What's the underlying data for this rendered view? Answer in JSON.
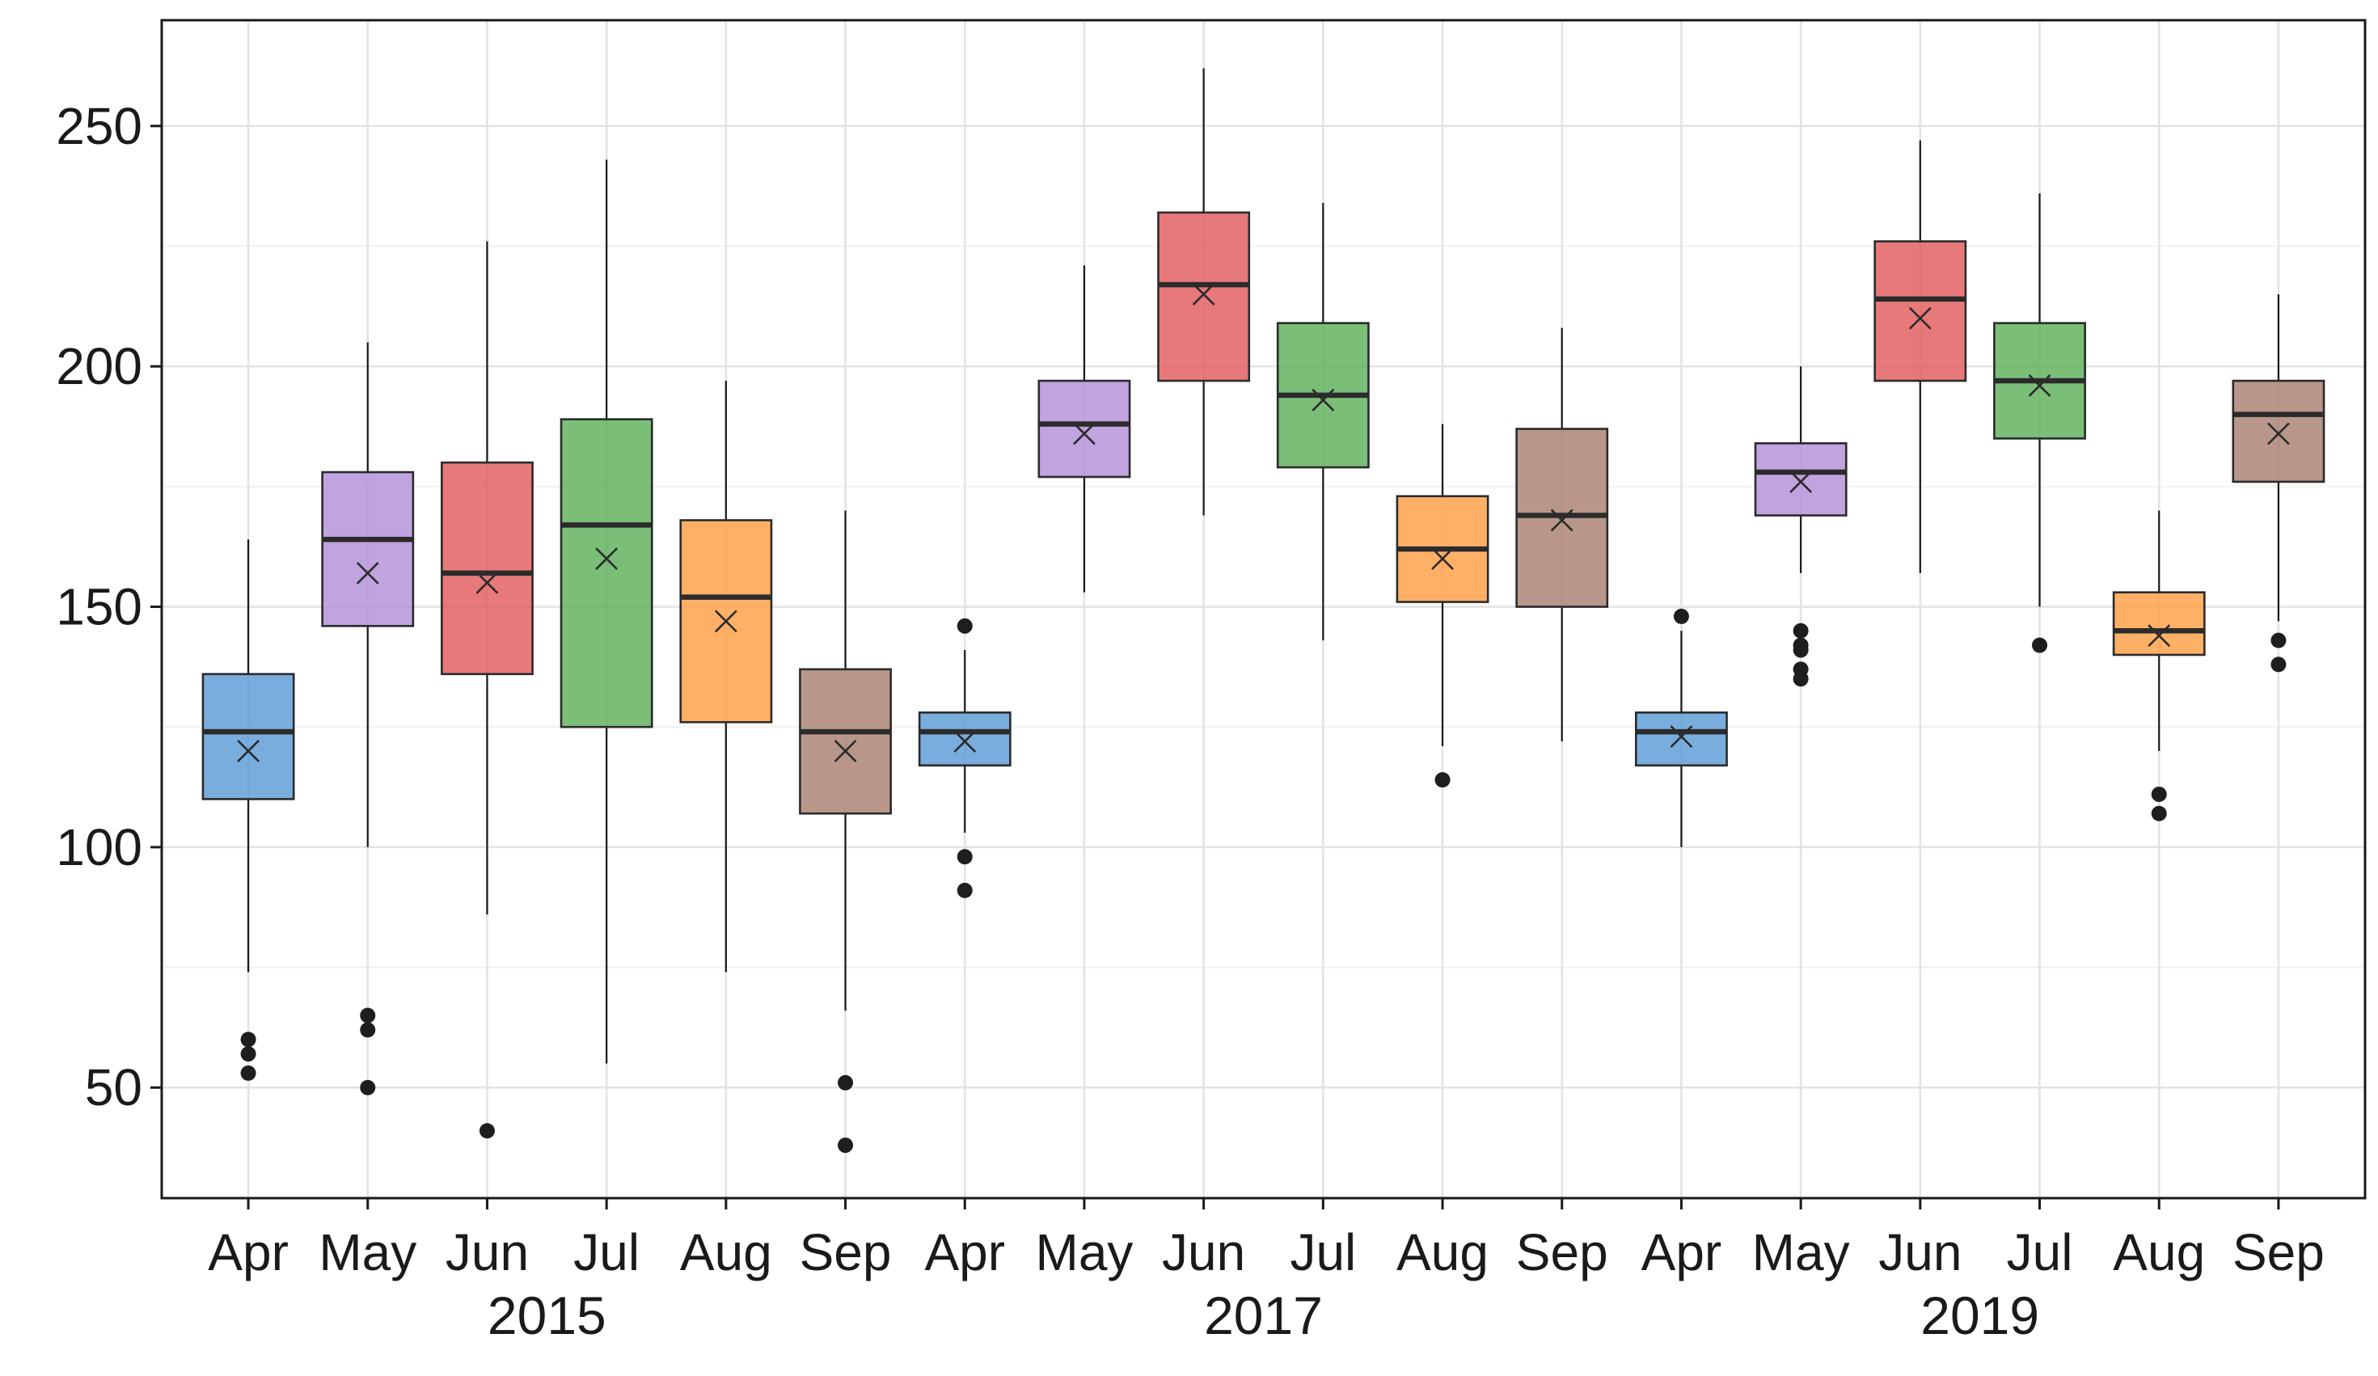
{
  "chart_data": {
    "type": "boxplot",
    "title": "",
    "xlabel": "",
    "ylabel": "",
    "ylim": [
      27,
      272
    ],
    "yticks": [
      50,
      100,
      150,
      200,
      250
    ],
    "grid": true,
    "legend": "none",
    "month_colors": {
      "Apr": "#5b9bd5",
      "May": "#b38fd9",
      "Jun": "#e25b5e",
      "Jul": "#5db05a",
      "Aug": "#ff9f45",
      "Sep": "#a88070"
    },
    "groups": [
      {
        "year": "2015",
        "boxes": [
          {
            "month": "Apr",
            "whisker_low": 74,
            "q1": 110,
            "median": 124,
            "q3": 136,
            "whisker_high": 164,
            "mean": 120,
            "outliers": [
              60,
              57,
              53
            ]
          },
          {
            "month": "May",
            "whisker_low": 100,
            "q1": 146,
            "median": 164,
            "q3": 178,
            "whisker_high": 205,
            "mean": 157,
            "outliers": [
              65,
              62,
              50
            ]
          },
          {
            "month": "Jun",
            "whisker_low": 86,
            "q1": 136,
            "median": 157,
            "q3": 180,
            "whisker_high": 226,
            "mean": 155,
            "outliers": [
              41
            ]
          },
          {
            "month": "Jul",
            "whisker_low": 55,
            "q1": 125,
            "median": 167,
            "q3": 189,
            "whisker_high": 243,
            "mean": 160,
            "outliers": []
          },
          {
            "month": "Aug",
            "whisker_low": 74,
            "q1": 126,
            "median": 152,
            "q3": 168,
            "whisker_high": 197,
            "mean": 147,
            "outliers": []
          },
          {
            "month": "Sep",
            "whisker_low": 66,
            "q1": 107,
            "median": 124,
            "q3": 137,
            "whisker_high": 170,
            "mean": 120,
            "outliers": [
              51,
              38
            ]
          }
        ]
      },
      {
        "year": "2017",
        "boxes": [
          {
            "month": "Apr",
            "whisker_low": 103,
            "q1": 117,
            "median": 124,
            "q3": 128,
            "whisker_high": 141,
            "mean": 122,
            "outliers": [
              146,
              98,
              91
            ]
          },
          {
            "month": "May",
            "whisker_low": 153,
            "q1": 177,
            "median": 188,
            "q3": 197,
            "whisker_high": 221,
            "mean": 186,
            "outliers": []
          },
          {
            "month": "Jun",
            "whisker_low": 169,
            "q1": 197,
            "median": 217,
            "q3": 232,
            "whisker_high": 262,
            "mean": 215,
            "outliers": []
          },
          {
            "month": "Jul",
            "whisker_low": 143,
            "q1": 179,
            "median": 194,
            "q3": 209,
            "whisker_high": 234,
            "mean": 193,
            "outliers": []
          },
          {
            "month": "Aug",
            "whisker_low": 121,
            "q1": 151,
            "median": 162,
            "q3": 173,
            "whisker_high": 188,
            "mean": 160,
            "outliers": [
              114
            ]
          },
          {
            "month": "Sep",
            "whisker_low": 122,
            "q1": 150,
            "median": 169,
            "q3": 187,
            "whisker_high": 208,
            "mean": 168,
            "outliers": []
          }
        ]
      },
      {
        "year": "2019",
        "boxes": [
          {
            "month": "Apr",
            "whisker_low": 100,
            "q1": 117,
            "median": 124,
            "q3": 128,
            "whisker_high": 145,
            "mean": 123,
            "outliers": [
              148
            ]
          },
          {
            "month": "May",
            "whisker_low": 157,
            "q1": 169,
            "median": 178,
            "q3": 184,
            "whisker_high": 200,
            "mean": 176,
            "outliers": [
              145,
              142,
              141,
              137,
              135
            ]
          },
          {
            "month": "Jun",
            "whisker_low": 157,
            "q1": 197,
            "median": 214,
            "q3": 226,
            "whisker_high": 247,
            "mean": 210,
            "outliers": []
          },
          {
            "month": "Jul",
            "whisker_low": 150,
            "q1": 185,
            "median": 197,
            "q3": 209,
            "whisker_high": 236,
            "mean": 196,
            "outliers": [
              142
            ]
          },
          {
            "month": "Aug",
            "whisker_low": 120,
            "q1": 140,
            "median": 145,
            "q3": 153,
            "whisker_high": 170,
            "mean": 144,
            "outliers": [
              111,
              107
            ]
          },
          {
            "month": "Sep",
            "whisker_low": 147,
            "q1": 176,
            "median": 190,
            "q3": 197,
            "whisker_high": 215,
            "mean": 186,
            "outliers": [
              143,
              138
            ]
          }
        ]
      }
    ]
  }
}
